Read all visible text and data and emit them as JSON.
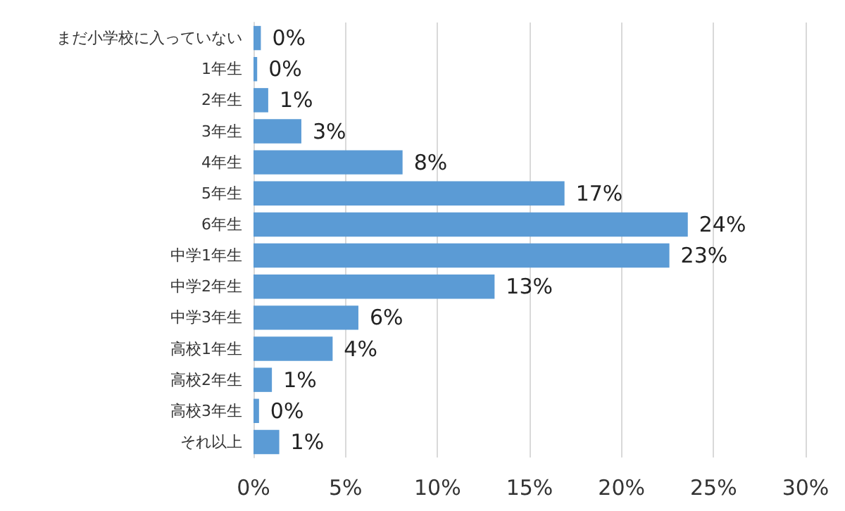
{
  "chart_data": {
    "type": "bar",
    "orientation": "horizontal",
    "categories": [
      "まだ小学校に入っていない",
      "1年生",
      "2年生",
      "3年生",
      "4年生",
      "5年生",
      "6年生",
      "中学1年生",
      "中学2年生",
      "中学3年生",
      "高校1年生",
      "高校2年生",
      "高校3年生",
      "それ以上"
    ],
    "values": [
      0.4,
      0.2,
      0.8,
      2.6,
      8.1,
      16.9,
      23.6,
      22.6,
      13.1,
      5.7,
      4.3,
      1.0,
      0.3,
      1.4
    ],
    "value_labels": [
      "0%",
      "0%",
      "1%",
      "3%",
      "8%",
      "17%",
      "24%",
      "23%",
      "13%",
      "6%",
      "4%",
      "1%",
      "0%",
      "1%"
    ],
    "color": "#5b9bd5",
    "xlim": [
      0,
      30
    ],
    "xticks": [
      {
        "value": 0,
        "label": "0%"
      },
      {
        "value": 5,
        "label": "5%"
      },
      {
        "value": 10,
        "label": "10%"
      },
      {
        "value": 15,
        "label": "15%"
      },
      {
        "value": 20,
        "label": "20%"
      },
      {
        "value": 25,
        "label": "25%"
      },
      {
        "value": 30,
        "label": "30%"
      }
    ],
    "grid": "x"
  }
}
